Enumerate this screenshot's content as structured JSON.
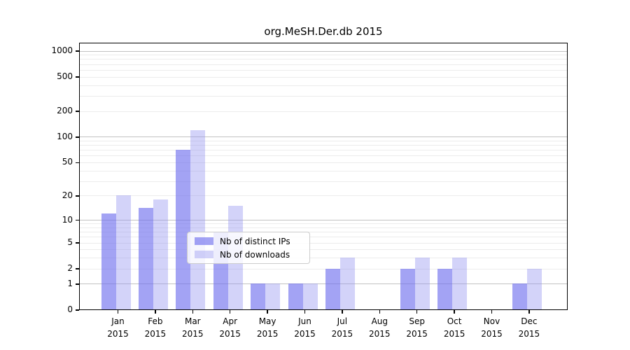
{
  "figure": {
    "title": "org.MeSH.Der.db 2015",
    "background_color": "#ffffff",
    "spine_color": "#000000",
    "grid_minor_color": "#ececec",
    "grid_major_color": "#c3c3c3"
  },
  "chart_data": {
    "type": "bar",
    "title": "org.MeSH.Der.db 2015",
    "categories": [
      "Jan",
      "Feb",
      "Mar",
      "Apr",
      "May",
      "Jun",
      "Jul",
      "Aug",
      "Sep",
      "Oct",
      "Nov",
      "Dec"
    ],
    "year_label": "2015",
    "series": [
      {
        "name": "Nb of distinct IPs",
        "color_hex": "#a3a3f0",
        "fill": "rgba(106,106,238,0.62)",
        "values": [
          12,
          14,
          70,
          7,
          1,
          1,
          2,
          0,
          2,
          2,
          0,
          1
        ]
      },
      {
        "name": "Nb of downloads",
        "color_hex": "#d8d8f8",
        "fill": "rgba(145,145,240,0.40)",
        "values": [
          20,
          18,
          120,
          15,
          1,
          1,
          3,
          0,
          3,
          3,
          0,
          2
        ]
      }
    ],
    "xlabel": "",
    "ylabel": "",
    "yscale": "log1p",
    "yticks": [
      0,
      1,
      2,
      5,
      10,
      20,
      50,
      100,
      200,
      500,
      1000
    ],
    "ylim": [
      0,
      1250
    ],
    "grid": "on",
    "legend": {
      "entries": [
        "Nb of distinct IPs",
        "Nb of downloads"
      ],
      "position": "lower-center-left-inside"
    }
  }
}
